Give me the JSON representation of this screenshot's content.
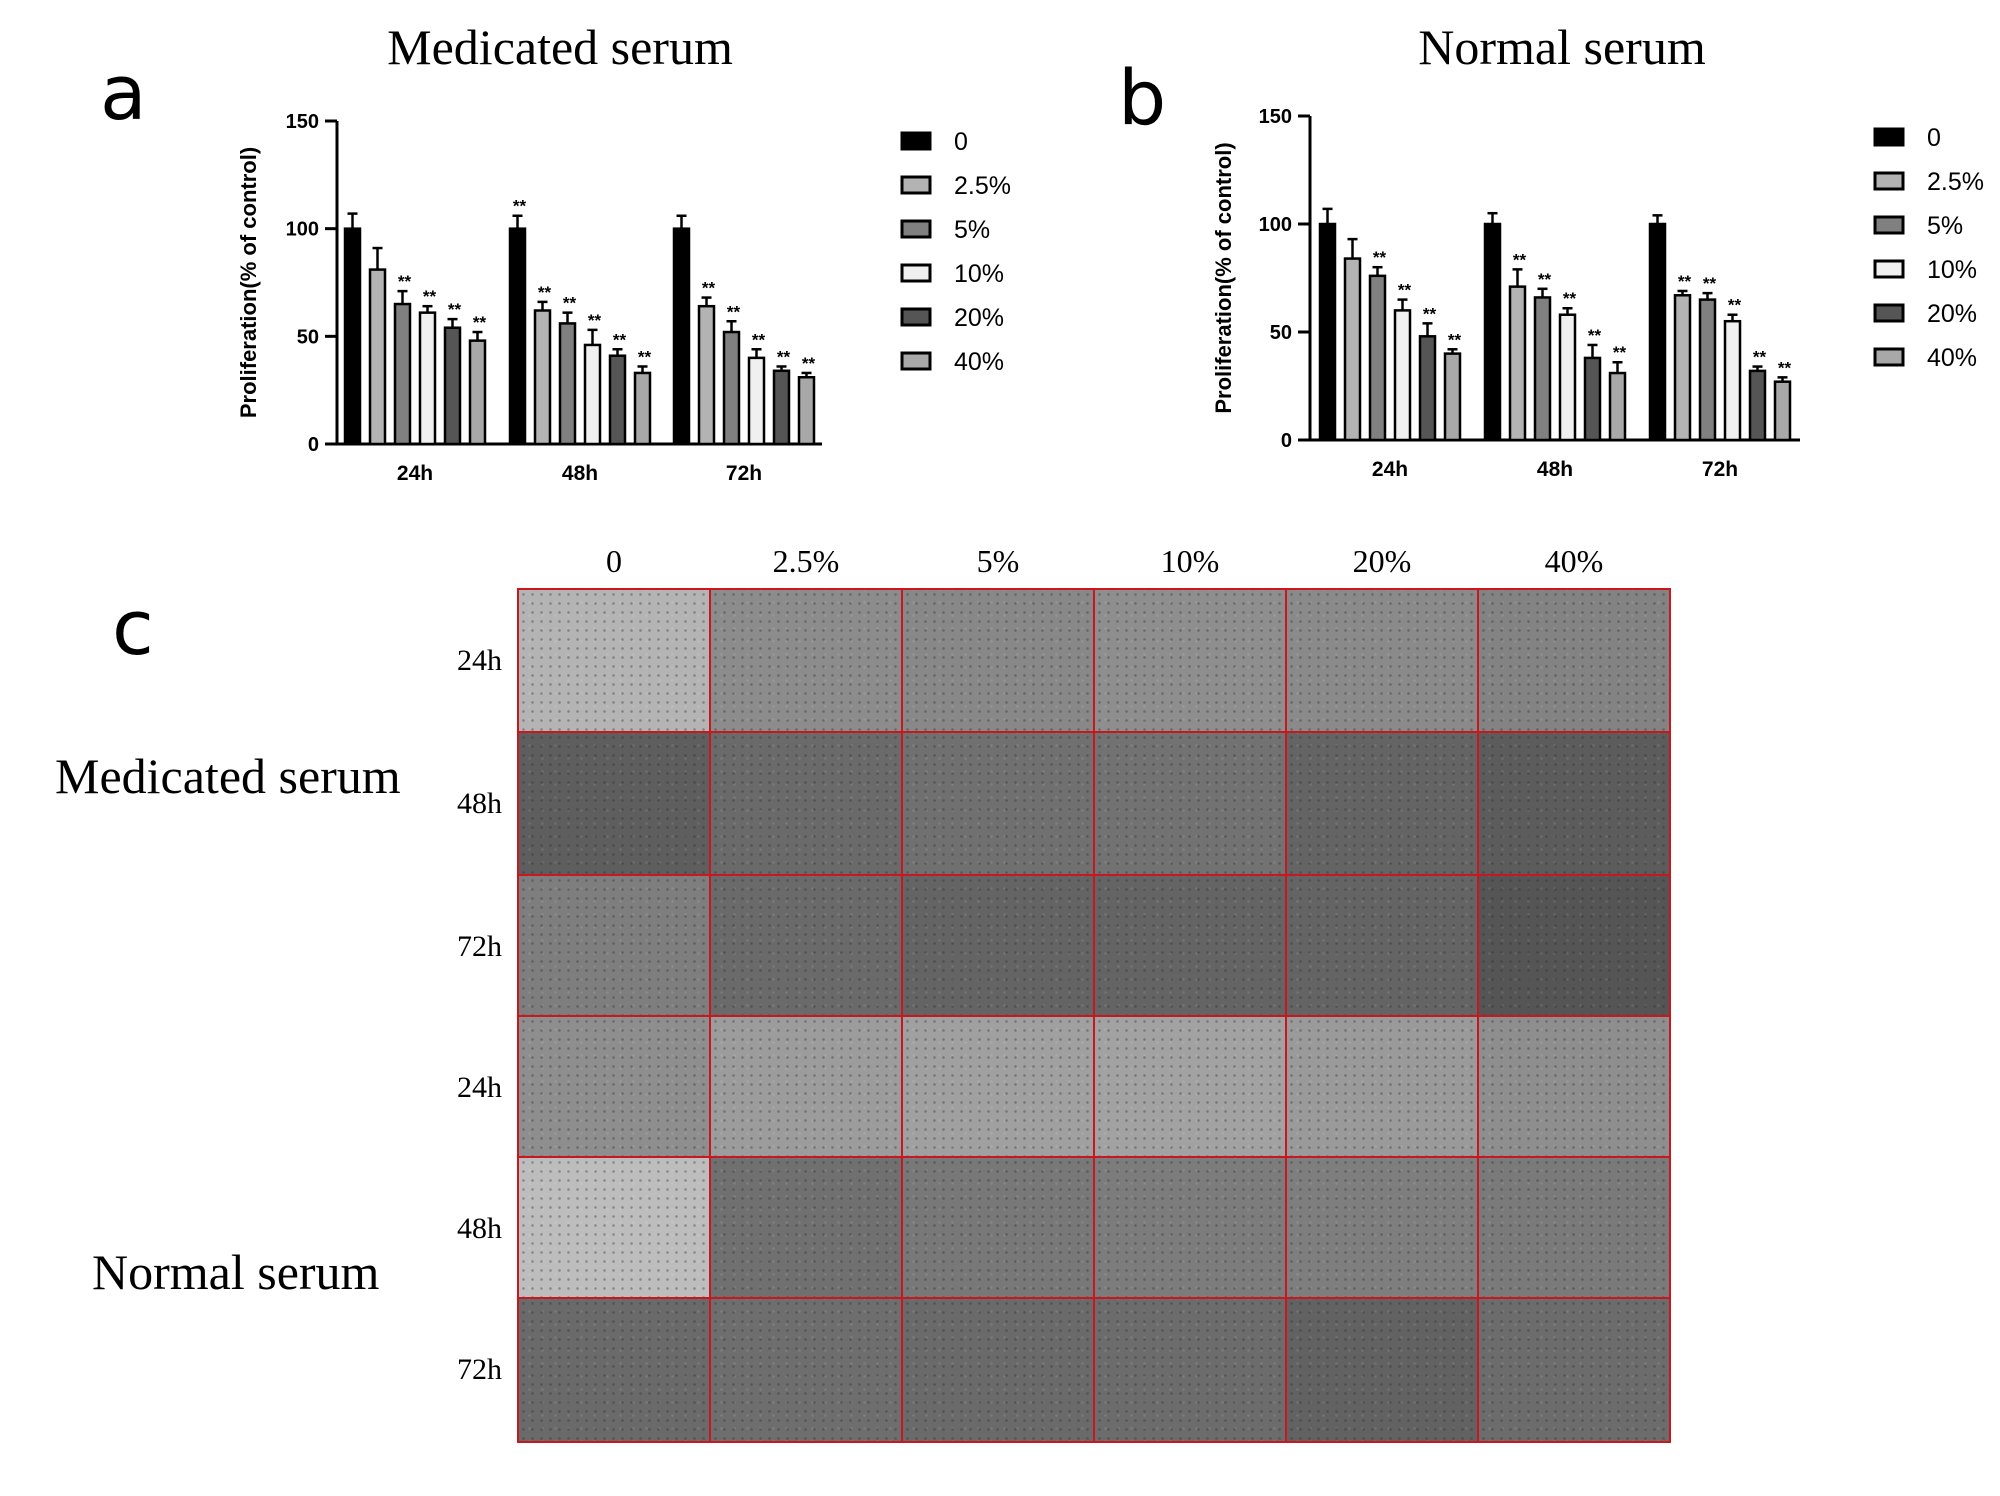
{
  "panels": {
    "a": "a",
    "b": "b",
    "c": "c"
  },
  "chart_data": [
    {
      "type": "bar",
      "title": "Medicated serum",
      "xlabel": "",
      "ylabel": "Proliferation(% of control)",
      "ylim": [
        0,
        150
      ],
      "yticks": [
        "0",
        "50",
        "100",
        "150"
      ],
      "categories": [
        "24h",
        "48h",
        "72h"
      ],
      "series": [
        {
          "name": "0",
          "color": "#000000",
          "values": [
            100,
            100,
            100
          ],
          "errors": [
            7,
            6,
            6
          ]
        },
        {
          "name": "2.5%",
          "color": "#b3b3b3",
          "values": [
            81,
            62,
            64
          ],
          "errors": [
            10,
            4,
            4
          ]
        },
        {
          "name": "5%",
          "color": "#808080",
          "values": [
            65,
            56,
            52
          ],
          "errors": [
            6,
            5,
            5
          ]
        },
        {
          "name": "10%",
          "color": "#f0f0f0",
          "values": [
            61,
            46,
            40
          ],
          "errors": [
            3,
            7,
            4
          ]
        },
        {
          "name": "20%",
          "color": "#555555",
          "values": [
            54,
            41,
            34
          ],
          "errors": [
            4,
            3,
            2
          ]
        },
        {
          "name": "40%",
          "color": "#a8a8a8",
          "values": [
            48,
            33,
            31
          ],
          "errors": [
            4,
            3,
            2
          ]
        }
      ],
      "significance": [
        [
          "",
          "",
          "**",
          "**",
          "**",
          "**"
        ],
        [
          "**",
          "**",
          "**",
          "**",
          "**",
          "**"
        ],
        [
          "",
          "**",
          "**",
          "**",
          "**",
          "**"
        ]
      ],
      "legend": "right",
      "grid": false
    },
    {
      "type": "bar",
      "title": "Normal serum",
      "xlabel": "",
      "ylabel": "Proliferation(% of control)",
      "ylim": [
        0,
        150
      ],
      "yticks": [
        "0",
        "50",
        "100",
        "150"
      ],
      "categories": [
        "24h",
        "48h",
        "72h"
      ],
      "series": [
        {
          "name": "0",
          "color": "#000000",
          "values": [
            100,
            100,
            100
          ],
          "errors": [
            7,
            5,
            4
          ]
        },
        {
          "name": "2.5%",
          "color": "#b3b3b3",
          "values": [
            84,
            71,
            67
          ],
          "errors": [
            9,
            8,
            2
          ]
        },
        {
          "name": "5%",
          "color": "#808080",
          "values": [
            76,
            66,
            65
          ],
          "errors": [
            4,
            4,
            3
          ]
        },
        {
          "name": "10%",
          "color": "#f0f0f0",
          "values": [
            60,
            58,
            55
          ],
          "errors": [
            5,
            3,
            3
          ]
        },
        {
          "name": "20%",
          "color": "#555555",
          "values": [
            48,
            38,
            32
          ],
          "errors": [
            6,
            6,
            2
          ]
        },
        {
          "name": "40%",
          "color": "#a8a8a8",
          "values": [
            40,
            31,
            27
          ],
          "errors": [
            2,
            5,
            2
          ]
        }
      ],
      "significance": [
        [
          "",
          "",
          "**",
          "**",
          "**",
          "**"
        ],
        [
          "",
          "**",
          "**",
          "**",
          "**",
          "**"
        ],
        [
          "",
          "**",
          "**",
          "**",
          "**",
          "**"
        ]
      ],
      "legend": "right",
      "grid": false
    }
  ],
  "micrographs": {
    "columns": [
      "0",
      "2.5%",
      "5%",
      "10%",
      "20%",
      "40%"
    ],
    "rows": [
      "24h",
      "48h",
      "72h",
      "24h",
      "48h",
      "72h"
    ],
    "groups": [
      "Medicated serum",
      "Normal serum"
    ],
    "border_color": "#c8181e",
    "tones": [
      [
        "#b4b4b4",
        "#8c8c8c",
        "#888888",
        "#8e8e8e",
        "#8a8a8a",
        "#838383"
      ],
      [
        "#5e5e5e",
        "#6a6a6a",
        "#707070",
        "#727272",
        "#646464",
        "#5c5c5c"
      ],
      [
        "#7e7e7e",
        "#6a6a6a",
        "#646464",
        "#646464",
        "#646464",
        "#555555"
      ],
      [
        "#8e8e8e",
        "#9c9c9c",
        "#a0a0a0",
        "#a2a2a2",
        "#9a9a9a",
        "#8e8e8e"
      ],
      [
        "#bdbdbd",
        "#707070",
        "#787878",
        "#7c7c7c",
        "#7e7e7e",
        "#7a7a7a"
      ],
      [
        "#6a6a6a",
        "#6e6e6e",
        "#6a6a6a",
        "#6c6c6c",
        "#626262",
        "#6c6c6c"
      ]
    ]
  }
}
